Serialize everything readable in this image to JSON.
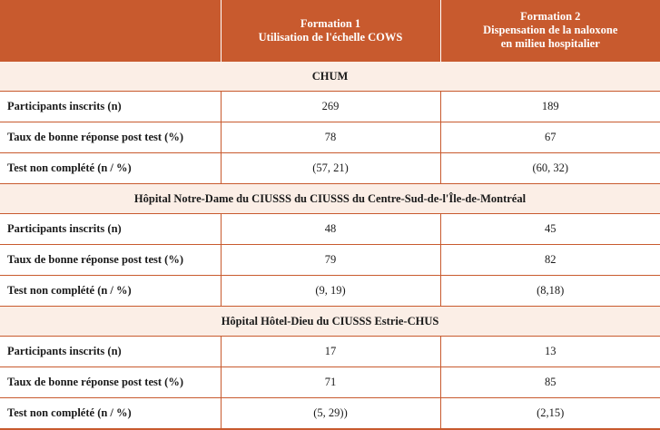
{
  "header": {
    "col1": "",
    "col2_line1": "Formation 1",
    "col2_line2": "Utilisation de l'échelle COWS",
    "col3_line1": "Formation 2",
    "col3_line2": "Dispensation de la naloxone",
    "col3_line3": "en milieu hospitalier"
  },
  "sections": [
    {
      "title": "CHUM",
      "rows": [
        {
          "label": "Participants inscrits (n)",
          "f1": "269",
          "f2": "189"
        },
        {
          "label": "Taux de bonne réponse post test (%)",
          "f1": "78",
          "f2": "67"
        },
        {
          "label": "Test non complété (n / %)",
          "f1": "(57, 21)",
          "f2": "(60, 32)"
        }
      ]
    },
    {
      "title": "Hôpital Notre-Dame du CIUSSS du CIUSSS du Centre-Sud-de-l'Île-de-Montréal",
      "rows": [
        {
          "label": "Participants inscrits (n)",
          "f1": "48",
          "f2": "45"
        },
        {
          "label": "Taux de bonne réponse post test (%)",
          "f1": "79",
          "f2": "82"
        },
        {
          "label": "Test non complété (n / %)",
          "f1": "(9, 19)",
          "f2": "(8,18)"
        }
      ]
    },
    {
      "title": "Hôpital Hôtel-Dieu du CIUSSS Estrie-CHUS",
      "rows": [
        {
          "label": "Participants inscrits (n)",
          "f1": "17",
          "f2": "13"
        },
        {
          "label": "Taux de bonne réponse post test (%)",
          "f1": "71",
          "f2": "85"
        },
        {
          "label": "Test non complété (n / %)",
          "f1": "(5, 29))",
          "f2": "(2,15)"
        }
      ]
    }
  ],
  "colors": {
    "header_bg": "#c85a2e",
    "section_bg": "#fbeee6",
    "rule": "#c85a2e"
  }
}
